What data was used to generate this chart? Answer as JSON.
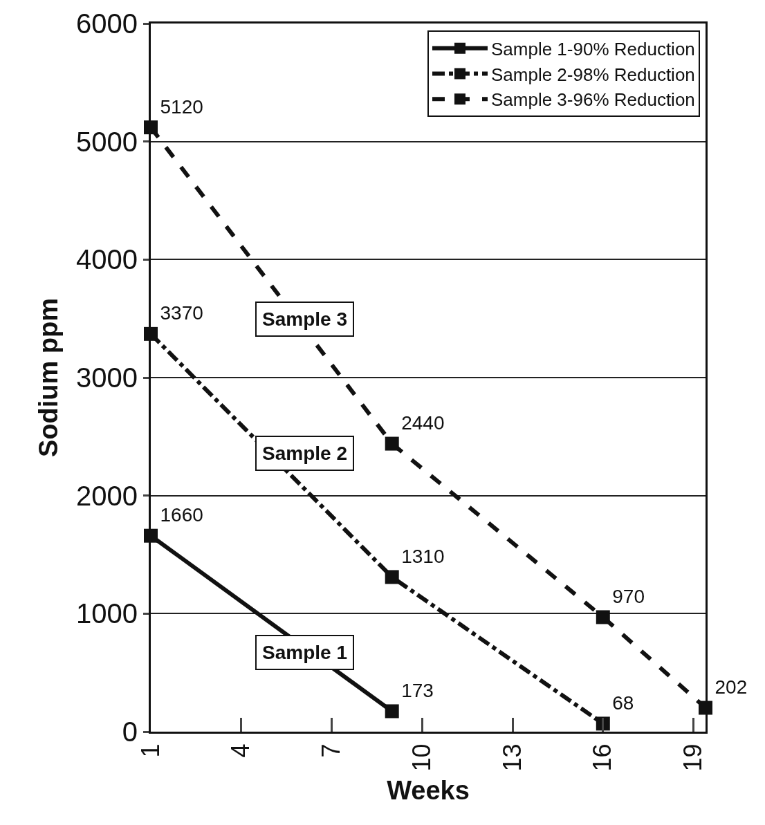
{
  "chart_data": {
    "type": "line",
    "xlabel": "Weeks",
    "ylabel": "Sodium ppm",
    "series": [
      {
        "name": "Sample 1-90% Reduction",
        "color": "#111111",
        "x": [
          1,
          9
        ],
        "values": [
          1660,
          173
        ],
        "line_style": "solid"
      },
      {
        "name": "Sample 2-98% Reduction",
        "color": "#111111",
        "x": [
          1,
          9,
          16
        ],
        "values": [
          3370,
          1310,
          68
        ],
        "line_style": "dashdot"
      },
      {
        "name": "Sample 3-96% Reduction",
        "color": "#111111",
        "x": [
          1,
          9,
          16,
          19.4
        ],
        "values": [
          5120,
          2440,
          970,
          202
        ],
        "line_style": "dashed"
      }
    ],
    "annotations": [
      "Sample 3",
      "Sample 2",
      "Sample 1"
    ],
    "xlim": [
      1,
      19.4
    ],
    "xticks": [
      1,
      4,
      7,
      10,
      13,
      16,
      19
    ],
    "ylim": [
      0,
      6000
    ],
    "yticks": [
      0,
      1000,
      2000,
      3000,
      4000,
      5000,
      6000
    ],
    "grid": "y",
    "legend": "top right",
    "marker": "square",
    "data_labels": true
  }
}
